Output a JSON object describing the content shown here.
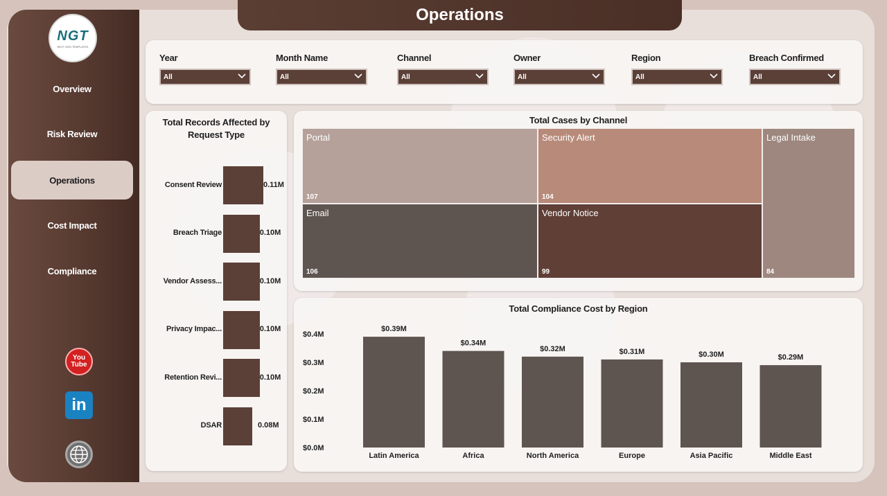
{
  "title": "Operations",
  "logo": {
    "text": "NGT",
    "sub": "NEXT GEN TEMPLATES"
  },
  "nav": [
    {
      "label": "Overview",
      "active": false
    },
    {
      "label": "Risk Review",
      "active": false
    },
    {
      "label": "Operations",
      "active": true
    },
    {
      "label": "Cost Impact",
      "active": false
    },
    {
      "label": "Compliance",
      "active": false
    }
  ],
  "social": {
    "youtube_text": "You Tube",
    "linkedin_text": "in"
  },
  "filters": [
    {
      "label": "Year",
      "value": "All"
    },
    {
      "label": "Month Name",
      "value": "All"
    },
    {
      "label": "Channel",
      "value": "All"
    },
    {
      "label": "Owner",
      "value": "All"
    },
    {
      "label": "Region",
      "value": "All"
    },
    {
      "label": "Breach Confirmed",
      "value": "All"
    }
  ],
  "records_chart": {
    "title": "Total Records Affected by Request Type",
    "rows": [
      {
        "label": "Consent Review",
        "value": 0.11,
        "value_label": "0.11M"
      },
      {
        "label": "Breach Triage",
        "value": 0.1,
        "value_label": "0.10M"
      },
      {
        "label": "Vendor Assess...",
        "value": 0.1,
        "value_label": "0.10M"
      },
      {
        "label": "Privacy Impac...",
        "value": 0.1,
        "value_label": "0.10M"
      },
      {
        "label": "Retention Revi...",
        "value": 0.1,
        "value_label": "0.10M"
      },
      {
        "label": "DSAR",
        "value": 0.08,
        "value_label": "0.08M"
      }
    ]
  },
  "treemap": {
    "title": "Total Cases by Channel",
    "tiles": [
      {
        "name": "Portal",
        "value": "107",
        "color": "#b5a19a"
      },
      {
        "name": "Security Alert",
        "value": "104",
        "color": "#b88a7a"
      },
      {
        "name": "Legal Intake",
        "value": "84",
        "color": "#9d877e"
      },
      {
        "name": "Email",
        "value": "106",
        "color": "#5e5551"
      },
      {
        "name": "Vendor Notice",
        "value": "99",
        "color": "#5f3f36"
      }
    ]
  },
  "chart_data": {
    "type": "bar",
    "title": "Total Compliance Cost by Region",
    "categories": [
      "Latin America",
      "Africa",
      "North America",
      "Europe",
      "Asia Pacific",
      "Middle East"
    ],
    "values": [
      0.39,
      0.34,
      0.32,
      0.31,
      0.3,
      0.29
    ],
    "value_labels": [
      "$0.39M",
      "$0.34M",
      "$0.32M",
      "$0.31M",
      "$0.30M",
      "$0.29M"
    ],
    "yticks": [
      "$0.0M",
      "$0.1M",
      "$0.2M",
      "$0.3M",
      "$0.4M"
    ],
    "ylim": [
      0,
      0.4
    ],
    "grid": false,
    "color": "#5e5551"
  }
}
